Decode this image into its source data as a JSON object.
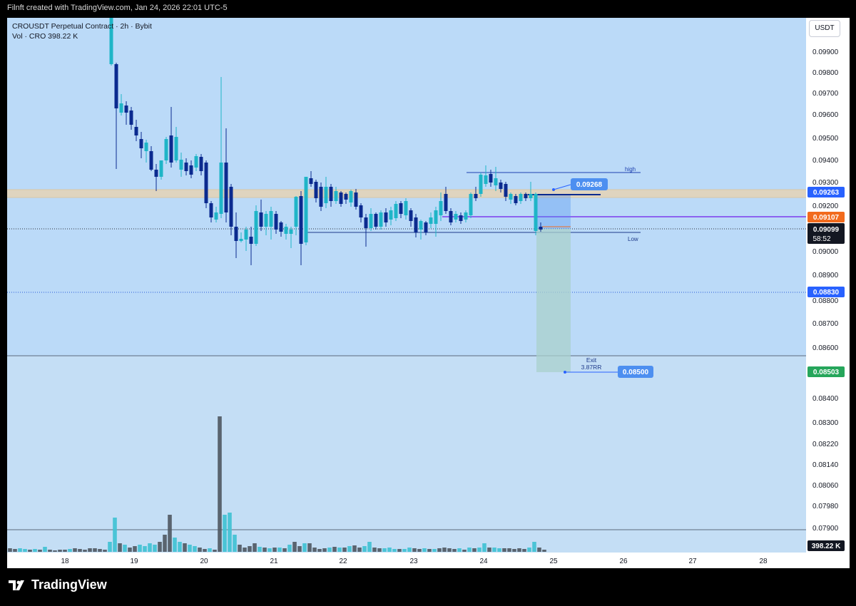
{
  "header": {
    "caption": "Filnft created with TradingView.com, Jan 24, 2026 22:01 UTC-5"
  },
  "legend": {
    "symbol_line": "CROUSDT Perpetual Contract · 2h · Bybit",
    "volume_line": "Vol · CRO   398.22 K"
  },
  "currency_button": "USDT",
  "price_axis": {
    "ticks": [
      "0.09900",
      "0.09800",
      "0.09700",
      "0.09600",
      "0.09500",
      "0.09400",
      "0.09300",
      "0.09200",
      "0.09000",
      "0.08900",
      "0.08800",
      "0.08700",
      "0.08600",
      "0.08400",
      "0.08300",
      "0.08220",
      "0.08140",
      "0.08060",
      "0.07980",
      "0.07900"
    ],
    "tags": {
      "level_upper": "0.09263",
      "level_mid": "0.09107",
      "last_price": "0.09099",
      "countdown": "58:52",
      "stop_level": "0.08830",
      "target_level": "0.08503",
      "volume_value": "398.22 K"
    }
  },
  "time_axis": {
    "labels": [
      "18",
      "19",
      "20",
      "21",
      "22",
      "23",
      "24",
      "25",
      "26",
      "27",
      "28"
    ]
  },
  "annotations": {
    "high_label": "high",
    "low_label": "Low",
    "callout_upper": "0.09268",
    "exit_label": "Exit",
    "rr_label": "3.87RR",
    "callout_exit": "0.08500"
  },
  "colors": {
    "chart_bg": "#bbdaf8",
    "volume_bg": "#c4def5",
    "bull": "#1fb5c7",
    "bear": "#0b2a8f",
    "zone": "#e3d3b8",
    "purple_line": "#7c3aed",
    "orange_tag": "#f26b1d",
    "blue_tag": "#2962ff",
    "green_tag": "#26a65b",
    "dark_tag": "#131722"
  },
  "footer": {
    "brand": "TradingView"
  }
}
